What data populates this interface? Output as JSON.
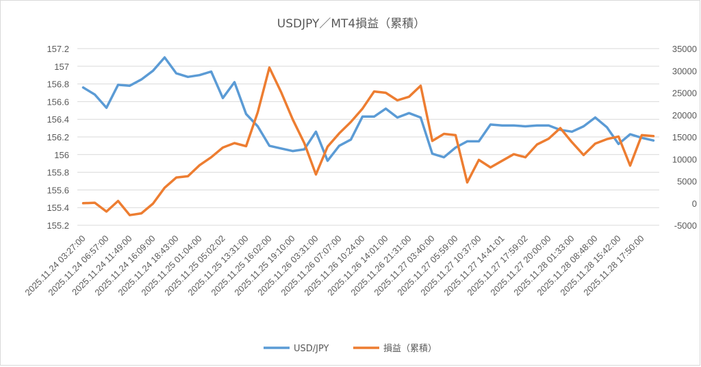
{
  "chart_data": {
    "type": "line",
    "title": "USDJPY／MT4損益（累積）",
    "categories": [
      "2025.11.24 03:27:00",
      "",
      "2025.11.24 06:57:00",
      "",
      "2025.11.24 11:49:00",
      "",
      "2025.11.24 16:09:00",
      "",
      "2025.11.24 18:43:00",
      "",
      "2025.11.25 01:04:00",
      "",
      "2025.11.25 05:02:02",
      "",
      "2025.11.25 13:31:00",
      "",
      "2025.11.25 16:02:00",
      "",
      "2025.11.25 19:10:00",
      "",
      "2025.11.26 03:31:00",
      "",
      "2025.11.26 07:07:00",
      "",
      "2025.11.26 10:24:00",
      "",
      "2025.11.26 14:01:00",
      "",
      "2025.11.26 21:31:00",
      "",
      "2025.11.27 03:40:00",
      "",
      "2025.11.27 05:59:00",
      "",
      "2025.11.27 10:37:00",
      "",
      "2025.11.27 14:41:01",
      "",
      "2025.11.27 17:59:02",
      "",
      "2025.11.27 20:00:00",
      "",
      "2025.11.28 01:33:00",
      "",
      "2025.11.28 08:48:00",
      "",
      "2025.11.28 15:42:00",
      "",
      "2025.11.28 17:50:00",
      ""
    ],
    "y_left": {
      "min": 155.2,
      "max": 157.2,
      "ticks": [
        "155.2",
        "155.4",
        "155.6",
        "155.8",
        "156",
        "156.2",
        "156.4",
        "156.6",
        "156.8",
        "157",
        "157.2"
      ]
    },
    "y_right": {
      "min": -5000,
      "max": 35000,
      "ticks": [
        "-5000",
        "0",
        "5000",
        "10000",
        "15000",
        "20000",
        "25000",
        "30000",
        "35000"
      ]
    },
    "series": [
      {
        "name": "USD/JPY",
        "axis": "left",
        "color": "#5b9bd5",
        "values": [
          156.76,
          156.68,
          156.53,
          156.79,
          156.78,
          156.85,
          156.95,
          157.1,
          156.92,
          156.88,
          156.9,
          156.94,
          156.64,
          156.82,
          156.46,
          156.32,
          156.1,
          156.07,
          156.04,
          156.06,
          156.26,
          155.93,
          156.1,
          156.17,
          156.43,
          156.43,
          156.52,
          156.42,
          156.47,
          156.42,
          156.01,
          155.97,
          156.08,
          156.15,
          156.15,
          156.34,
          156.33,
          156.33,
          156.32,
          156.33,
          156.33,
          156.28,
          156.26,
          156.32,
          156.42,
          156.31,
          156.12,
          156.23,
          156.19,
          156.16
        ]
      },
      {
        "name": "損益（累積）",
        "axis": "right",
        "color": "#ed7d31",
        "values": [
          0,
          100,
          -1900,
          500,
          -2700,
          -2300,
          -100,
          3500,
          5800,
          6100,
          8600,
          10400,
          12600,
          13600,
          12900,
          20600,
          30700,
          25200,
          19000,
          13600,
          6500,
          12800,
          15800,
          18400,
          21400,
          25300,
          25000,
          23300,
          24100,
          26600,
          14100,
          15700,
          15400,
          4700,
          9800,
          8100,
          9600,
          11100,
          10400,
          13300,
          14600,
          17000,
          13800,
          10900,
          13500,
          14500,
          15100,
          8500,
          15400,
          15200
        ]
      }
    ],
    "legend_position": "bottom",
    "grid": true
  }
}
